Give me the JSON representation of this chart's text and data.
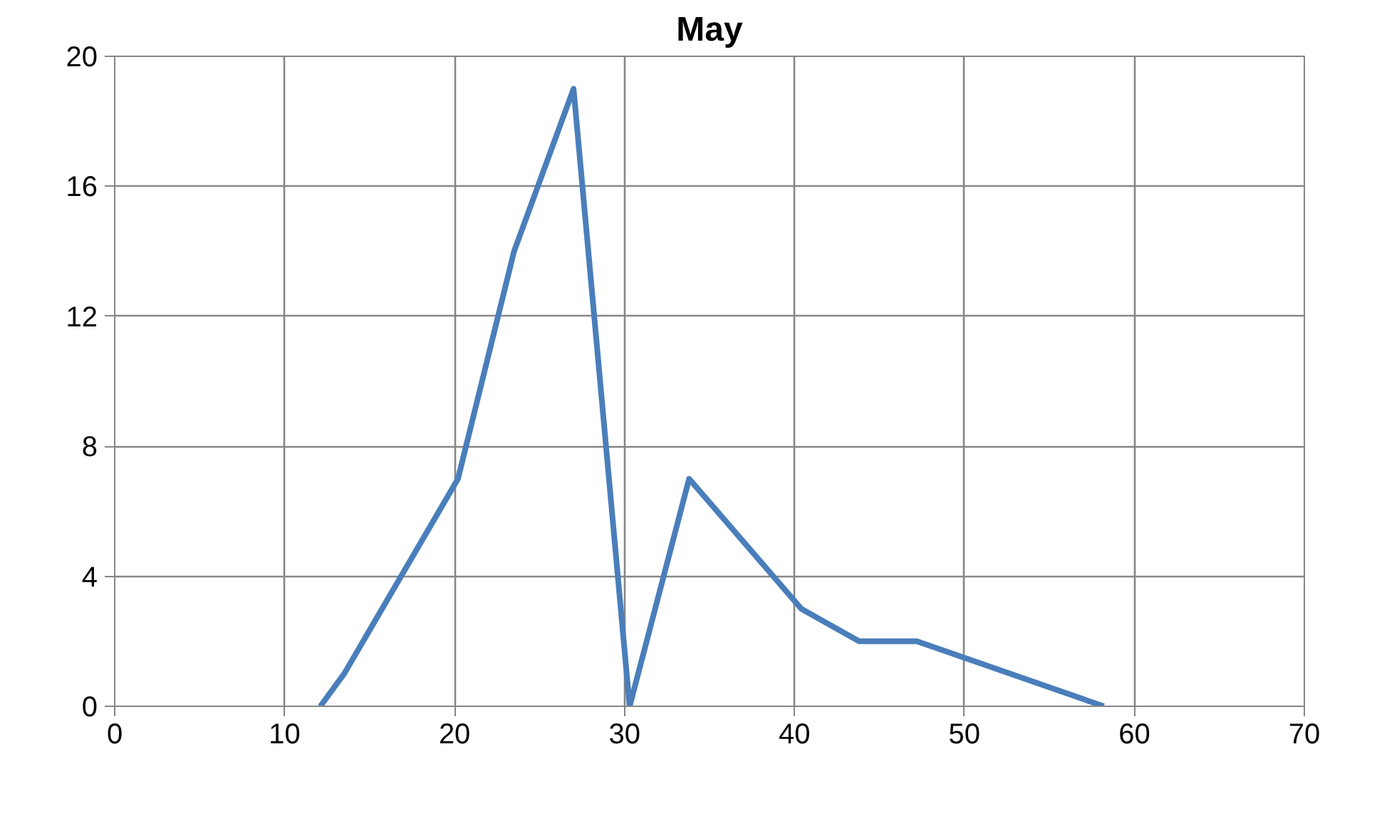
{
  "chart_data": {
    "type": "line",
    "title": "May",
    "series": [
      {
        "color": "#4a7ebb",
        "x": [
          12.1,
          13.5,
          20.2,
          23.5,
          27.0,
          30.3,
          33.8,
          40.4,
          43.8,
          47.2,
          58.2
        ],
        "values": [
          0,
          1,
          7,
          14,
          19,
          0,
          7,
          3,
          2,
          2,
          0
        ]
      }
    ],
    "xlim": [
      0,
      70
    ],
    "xticks": [
      0,
      10,
      20,
      30,
      40,
      50,
      60,
      70
    ],
    "ylim": [
      0,
      20
    ],
    "yticks": [
      0,
      4,
      8,
      12,
      16,
      20
    ],
    "grid": true,
    "marker": "none",
    "line_style": "solid"
  }
}
